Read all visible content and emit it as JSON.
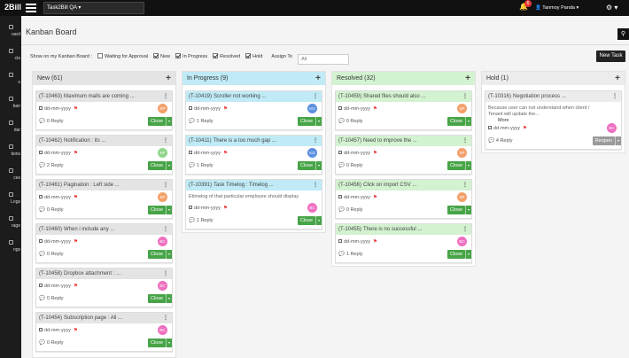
{
  "header": {
    "logo": "2Bill",
    "project": "Task2Bill QA",
    "notifications": "6",
    "user": "Tanmoy Panda"
  },
  "sidebar": [
    "oard",
    "cts",
    "s",
    "ban",
    "dar",
    "tions",
    "ces",
    "Logs",
    "rage",
    "ngs"
  ],
  "page": {
    "title": "Kanban Board",
    "new_task": "New Task"
  },
  "filters": {
    "label": "Show on my Kanban Board :",
    "options": [
      "Waiting for Approval",
      "New",
      "In Progress",
      "Resolved",
      "Hold"
    ],
    "checked": [
      false,
      true,
      true,
      true,
      true
    ],
    "assign_label": "Assign To",
    "assign_value": "All"
  },
  "columns": [
    {
      "title": "New (61)",
      "color": "#e4e4e4",
      "card_color": "#e4e4e4",
      "cards": [
        {
          "id": "(T-10463)",
          "title": "Maximum mails are coming ...",
          "date": "dd-mm-yyyy",
          "replies": "0 Reply",
          "button": "Close",
          "avatar": "KP",
          "avatar_color": "#f4a06a"
        },
        {
          "id": "(T-10462)",
          "title": "Notification : its ...",
          "date": "dd-mm-yyyy",
          "replies": "2 Reply",
          "button": "Close",
          "avatar": "KP",
          "avatar_color": "#8fd48a"
        },
        {
          "id": "(T-10461)",
          "title": "Pagination : Left side ...",
          "date": "dd-mm-yyyy",
          "replies": "0 Reply",
          "button": "Close",
          "avatar": "SP",
          "avatar_color": "#f4a06a"
        },
        {
          "id": "(T-10460)",
          "title": "When i include any ...",
          "date": "dd-mm-yyyy",
          "replies": "0 Reply",
          "button": "Close",
          "avatar": "BC",
          "avatar_color": "#ef6fc0"
        },
        {
          "id": "(T-10458)",
          "title": "Dropbox attachment : ...",
          "date": "dd-mm-yyyy",
          "replies": "0 Reply",
          "button": "Close",
          "avatar": "BC",
          "avatar_color": "#ef6fc0"
        },
        {
          "id": "(T-10454)",
          "title": "Subscription page : All ...",
          "date": "dd-mm-yyyy",
          "replies": "0 Reply",
          "button": "Close",
          "avatar": "BC",
          "avatar_color": "#ef6fc0"
        }
      ]
    },
    {
      "title": "In Progress (9)",
      "color": "#bfeaf6",
      "card_color": "#bfeaf6",
      "cards": [
        {
          "id": "(T-10419)",
          "title": "Scroller not working ...",
          "date": "dd-mm-yyyy",
          "replies": "1 Reply",
          "button": "Close",
          "avatar": "KG",
          "avatar_color": "#5b8fe0"
        },
        {
          "id": "(T-10411)",
          "title": "There is a too much gap ...",
          "date": "dd-mm-yyyy",
          "replies": "1 Reply",
          "button": "Close",
          "avatar": "KG",
          "avatar_color": "#5b8fe0"
        },
        {
          "id": "(T-10391)",
          "title": "Task Timelog : Timelog ...",
          "description": "Etimelog of that particular employee should display",
          "date": "dd-mm-yyyy",
          "replies": "1 Reply",
          "button": "Close",
          "avatar": "BC",
          "avatar_color": "#ef6fc0"
        }
      ]
    },
    {
      "title": "Resolved (32)",
      "color": "#d3f2d0",
      "card_color": "#d3f2d0",
      "cards": [
        {
          "id": "(T-10459)",
          "title": "Shared files should also ...",
          "date": "dd-mm-yyyy",
          "replies": "0 Reply",
          "button": "Close",
          "avatar": "SP",
          "avatar_color": "#f4a06a"
        },
        {
          "id": "(T-10457)",
          "title": "Need to improve the ...",
          "date": "dd-mm-yyyy",
          "replies": "0 Reply",
          "button": "Close",
          "avatar": "SP",
          "avatar_color": "#f4a06a"
        },
        {
          "id": "(T-10456)",
          "title": "Click on import CSV ...",
          "date": "dd-mm-yyyy",
          "replies": "0 Reply",
          "button": "Close",
          "avatar": "SP",
          "avatar_color": "#f4a06a"
        },
        {
          "id": "(T-10455)",
          "title": "There is no successful ...",
          "date": "dd-mm-yyyy",
          "replies": "1 Reply",
          "button": "Close",
          "avatar": "BC",
          "avatar_color": "#ef6fc0"
        }
      ]
    },
    {
      "title": "Hold (1)",
      "color": "#ececec",
      "card_color": "#ececec",
      "cards": [
        {
          "id": "(T-10316)",
          "title": "Negotiation process ...",
          "description": "Because user can not understand when client / Tenant will update the...",
          "more": "More",
          "date": "dd-mm-yyyy",
          "replies": "4 Reply",
          "button": "Reopen",
          "avatar": "BC",
          "avatar_color": "#ef6fc0"
        }
      ]
    }
  ]
}
